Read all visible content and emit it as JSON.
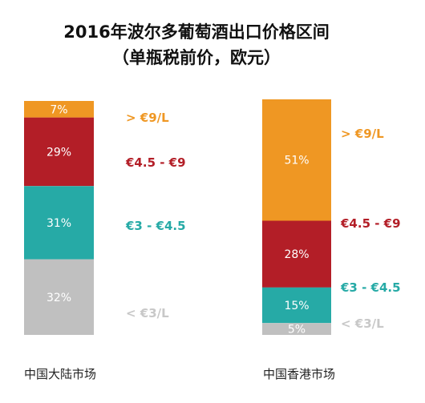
{
  "chart_data": {
    "type": "bar",
    "stacked": true,
    "title": "2016年波尔多葡萄酒出口价格区间",
    "subtitle": "（单瓶税前价，欧元）",
    "categories": [
      "中国大陆市场",
      "中国香港市场"
    ],
    "series": [
      {
        "name": "< €3/L",
        "values": [
          32,
          5
        ],
        "color": "#c0c0c0"
      },
      {
        "name": "€3 - €4.5",
        "values": [
          31,
          15
        ],
        "color": "#26aaa6"
      },
      {
        "name": "€4.5 - €9",
        "values": [
          29,
          28
        ],
        "color": "#b31e27"
      },
      {
        "name": "> €9/L",
        "values": [
          7,
          51
        ],
        "color": "#ef9723"
      }
    ],
    "value_labels": [
      [
        "32%",
        "5%"
      ],
      [
        "31%",
        "15%"
      ],
      [
        "29%",
        "28%"
      ],
      [
        "7%",
        "51%"
      ]
    ],
    "legend_labels": [
      {
        "text": "> €9/L",
        "color": "#ef9723"
      },
      {
        "text": "€4.5 - €9",
        "color": "#b31e27"
      },
      {
        "text": "€3 - €4.5",
        "color": "#26aaa6"
      },
      {
        "text": "< €3/L",
        "color": "#c8c8c8"
      }
    ],
    "ylim": [
      0,
      100
    ],
    "legend": "right of each bar"
  }
}
